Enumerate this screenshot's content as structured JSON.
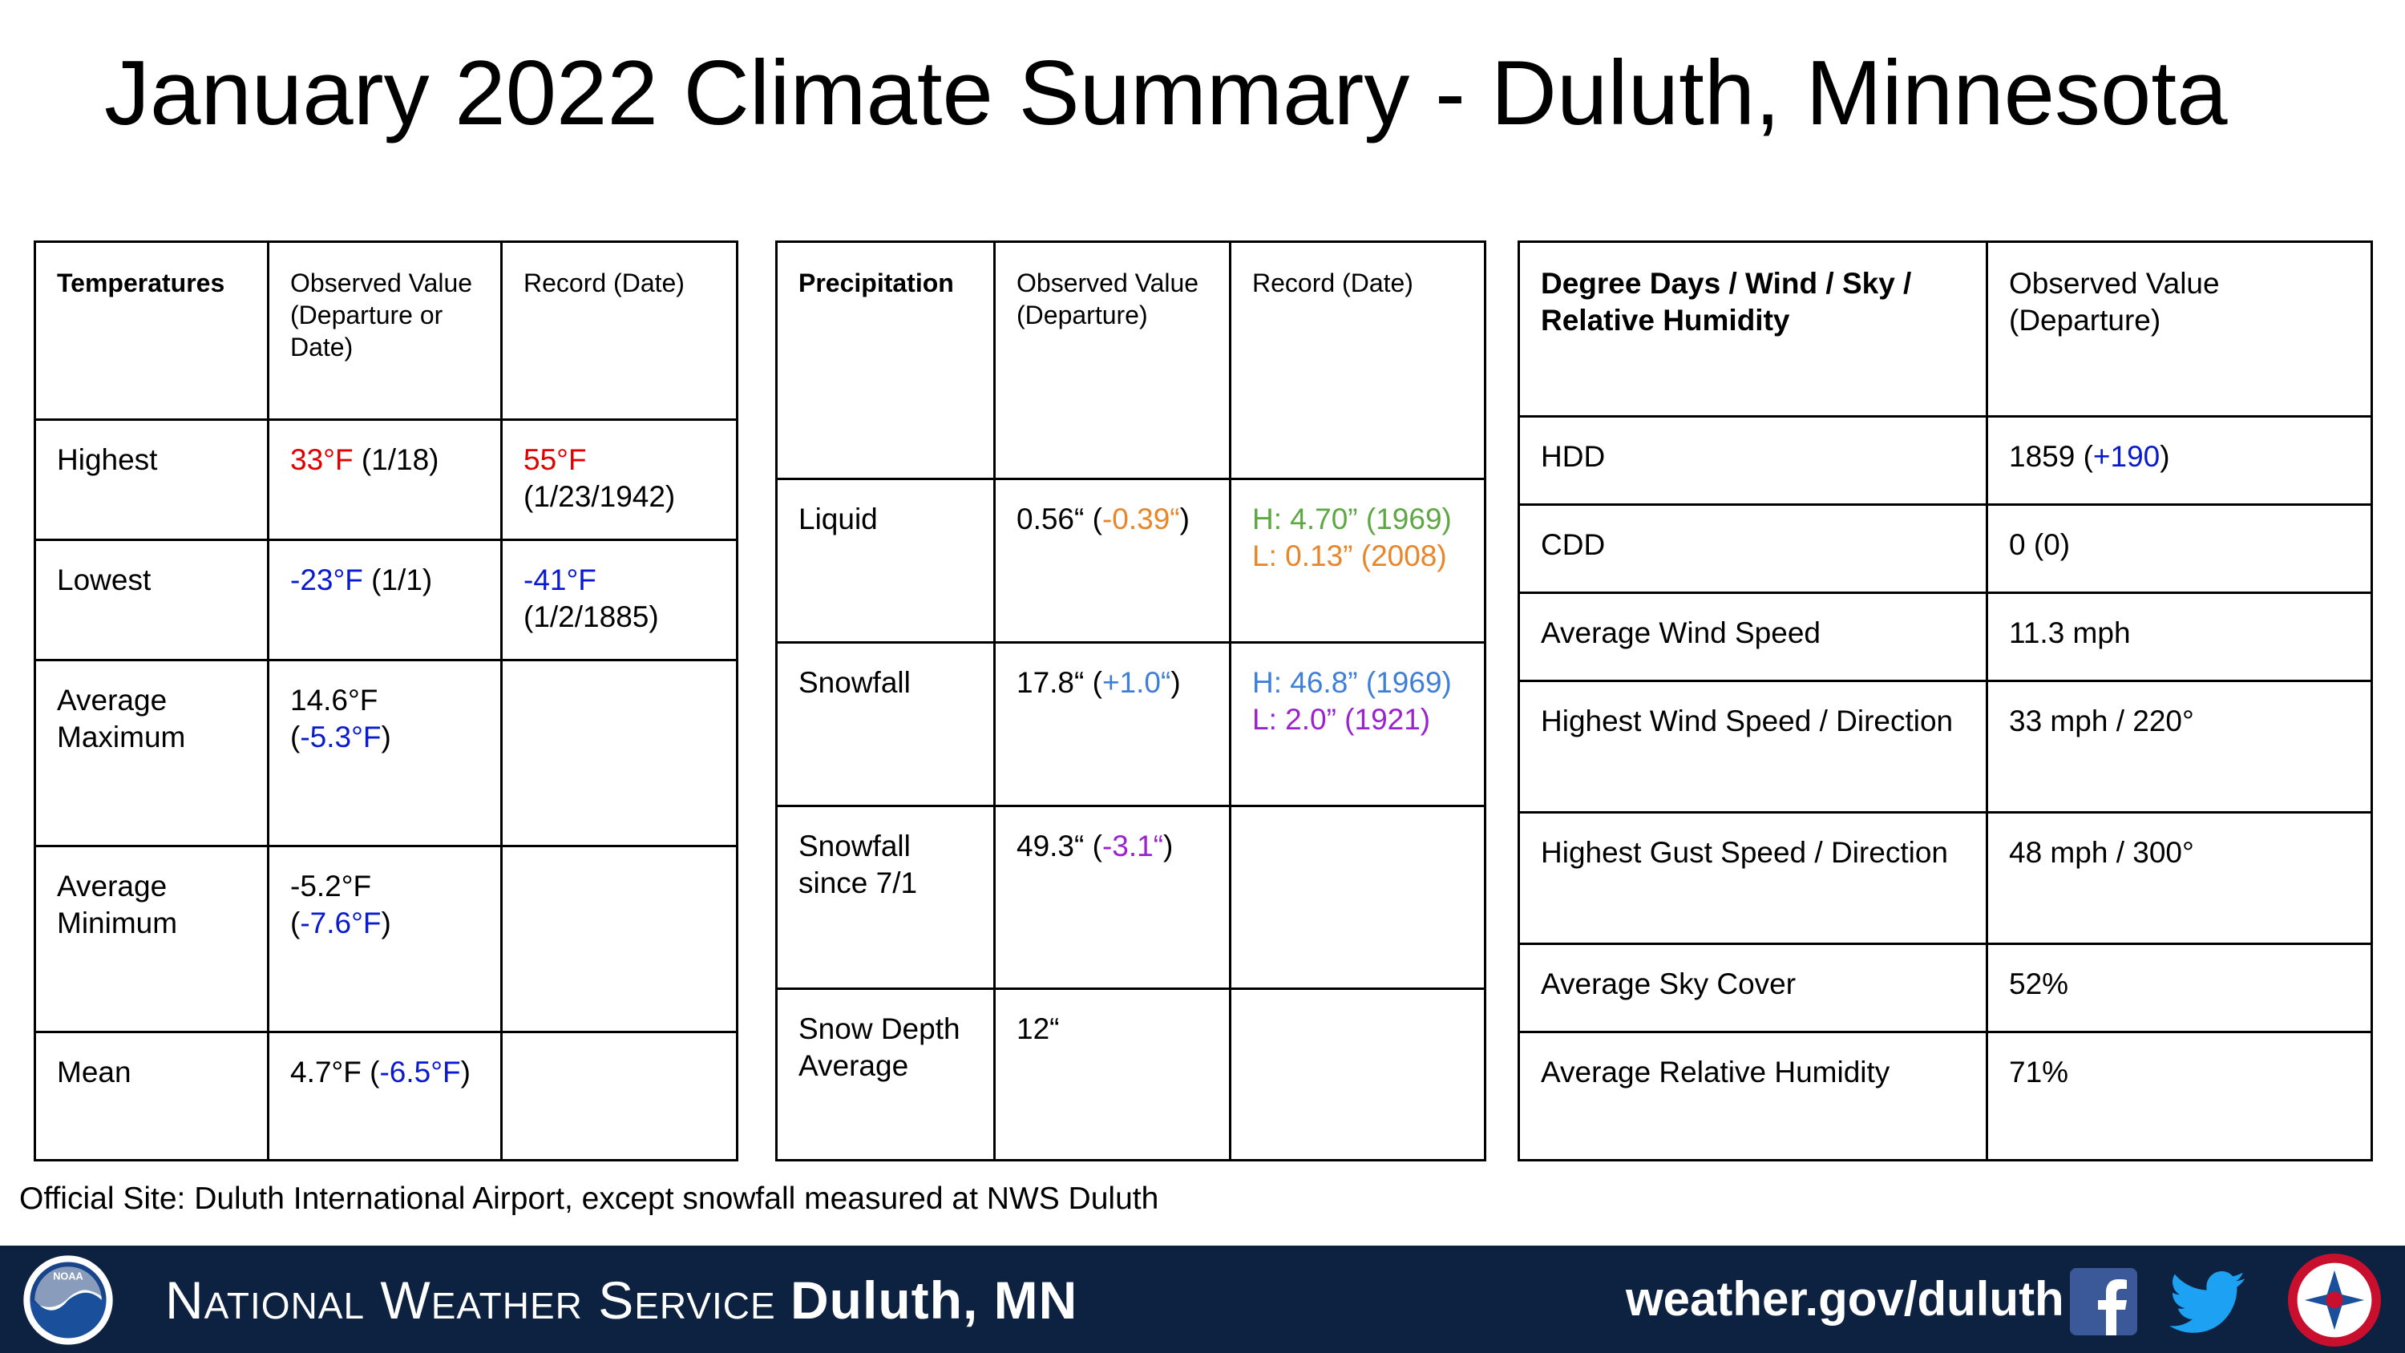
{
  "title": "January 2022 Climate Summary - Duluth, Minnesota",
  "temperatures": {
    "header": [
      "Temperatures",
      "Observed Value (Departure or Date)",
      "Record (Date)"
    ],
    "highest": {
      "label": "Highest",
      "obs_value": "33°F",
      "obs_date": " (1/18)",
      "rec_value": "55°F",
      "rec_date": "(1/23/1942)"
    },
    "lowest": {
      "label": "Lowest",
      "obs_value": "-23°F",
      "obs_date": " (1/1)",
      "rec_value": "-41°F",
      "rec_date": "(1/2/1885)"
    },
    "avg_max": {
      "label": "Average Maximum",
      "obs_value": "14.6°F (",
      "obs_dep": "-5.3°F",
      "obs_end": ")"
    },
    "avg_min": {
      "label": "Average Minimum",
      "obs_value": "-5.2°F (",
      "obs_dep": "-7.6°F",
      "obs_end": ")"
    },
    "mean": {
      "label": "Mean",
      "obs_value": "4.7°F (",
      "obs_dep": "-6.5°F",
      "obs_end": ")"
    }
  },
  "precipitation": {
    "header": [
      "Precipitation",
      "Observed Value (Departure)",
      "Record (Date)"
    ],
    "liquid": {
      "label": "Liquid",
      "obs_value": "0.56“ (",
      "obs_dep": "-0.39“",
      "obs_end": ")",
      "rec_high": "H: 4.70” (1969)",
      "rec_low": "L: 0.13” (2008)"
    },
    "snowfall": {
      "label": "Snowfall",
      "obs_value": "17.8“ (",
      "obs_dep": "+1.0“",
      "obs_end": ")",
      "rec_high": "H: 46.8” (1969)",
      "rec_low": "L: 2.0” (1921)"
    },
    "snowfall_season": {
      "label": "Snowfall since 7/1",
      "obs_value": "49.3“ (",
      "obs_dep": "-3.1“",
      "obs_end": ")"
    },
    "snow_depth": {
      "label": "Snow Depth Average",
      "obs_value": "12“"
    }
  },
  "degree_days": {
    "header": [
      "Degree Days / Wind / Sky / Relative Humidity",
      "Observed Value (Departure)"
    ],
    "hdd": {
      "label": "HDD",
      "value": "1859 (",
      "dep": "+190",
      "end": ")"
    },
    "cdd": {
      "label": "CDD",
      "value": "0 (0)"
    },
    "avg_wind": {
      "label": "Average Wind Speed",
      "value": "11.3 mph"
    },
    "high_wind": {
      "label": "Highest Wind Speed / Direction",
      "value": "33 mph / 220°"
    },
    "high_gust": {
      "label": "Highest Gust Speed / Direction",
      "value": "48 mph / 300°"
    },
    "sky_cover": {
      "label": "Average Sky Cover",
      "value": "52%"
    },
    "humidity": {
      "label": "Average Relative Humidity",
      "value": "71%"
    }
  },
  "footnote": "Official Site: Duluth International Airport, except snowfall measured at NWS Duluth",
  "banner": {
    "agency": "National Weather Service",
    "office": "Duluth, MN",
    "url": "weather.gov/duluth",
    "noaa_logo_text": "NOAA",
    "icons": [
      "noaa-logo",
      "facebook-icon",
      "twitter-icon",
      "nws-logo"
    ]
  }
}
